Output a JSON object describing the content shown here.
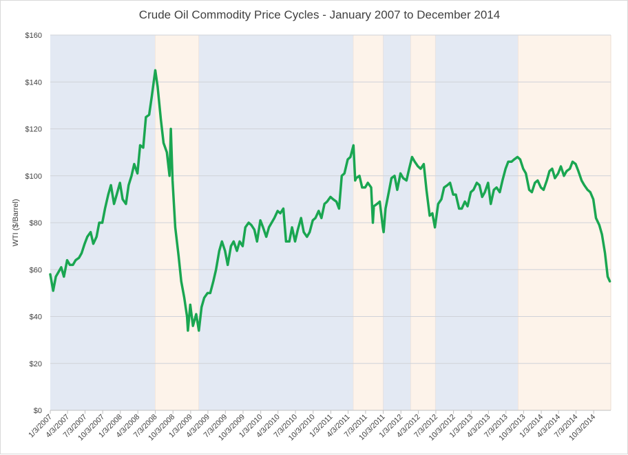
{
  "chart_data": {
    "type": "line",
    "title": "Crude Oil Commodity Price Cycles - January 2007 to December 2014",
    "xlabel": "",
    "ylabel": "WTI ($/Barrel)",
    "xlim": [
      "2007-01-03",
      "2014-12-31"
    ],
    "ylim": [
      0,
      160
    ],
    "y_ticks": [
      0,
      20,
      40,
      60,
      80,
      100,
      120,
      140,
      160
    ],
    "y_tick_labels": [
      "$0",
      "$20",
      "$40",
      "$60",
      "$80",
      "$100",
      "$120",
      "$140",
      "$160"
    ],
    "x_tick_labels": [
      "1/3/2007",
      "4/3/2007",
      "7/3/2007",
      "10/3/2007",
      "1/3/2008",
      "4/3/2008",
      "7/3/2008",
      "10/3/2008",
      "1/3/2009",
      "4/3/2009",
      "7/3/2009",
      "10/3/2009",
      "1/3/2010",
      "4/3/2010",
      "7/3/2010",
      "10/3/2010",
      "1/3/2011",
      "4/3/2011",
      "7/3/2011",
      "10/3/2011",
      "1/3/2012",
      "4/3/2012",
      "7/3/2012",
      "10/3/2012",
      "1/3/2013",
      "4/3/2013",
      "7/3/2013",
      "10/3/2013",
      "1/3/2014",
      "4/3/2014",
      "7/3/2014",
      "10/3/2014"
    ],
    "grid": true,
    "legend": "none",
    "line_color": "#1aa651",
    "shaded_periods": [
      {
        "start": "2007-01-03",
        "end": "2008-07-03",
        "color": "#e3e9f3"
      },
      {
        "start": "2008-07-03",
        "end": "2009-02-15",
        "color": "#fdf3ea"
      },
      {
        "start": "2009-02-15",
        "end": "2011-05-01",
        "color": "#e3e9f3"
      },
      {
        "start": "2011-05-01",
        "end": "2011-10-03",
        "color": "#fdf3ea"
      },
      {
        "start": "2011-10-03",
        "end": "2012-02-24",
        "color": "#e3e9f3"
      },
      {
        "start": "2012-02-24",
        "end": "2012-07-01",
        "color": "#fdf3ea"
      },
      {
        "start": "2012-07-01",
        "end": "2013-09-05",
        "color": "#e3e9f3"
      },
      {
        "start": "2013-09-05",
        "end": "2014-12-31",
        "color": "#fdf3ea"
      }
    ],
    "series": [
      {
        "points": [
          [
            "2007-01-03",
            58
          ],
          [
            "2007-01-18",
            51
          ],
          [
            "2007-02-01",
            57
          ],
          [
            "2007-02-15",
            59
          ],
          [
            "2007-03-01",
            61
          ],
          [
            "2007-03-15",
            57
          ],
          [
            "2007-04-01",
            64
          ],
          [
            "2007-04-15",
            62
          ],
          [
            "2007-05-01",
            62
          ],
          [
            "2007-05-15",
            64
          ],
          [
            "2007-06-01",
            65
          ],
          [
            "2007-06-15",
            67
          ],
          [
            "2007-07-01",
            71
          ],
          [
            "2007-07-15",
            74
          ],
          [
            "2007-08-01",
            76
          ],
          [
            "2007-08-15",
            71
          ],
          [
            "2007-09-01",
            74
          ],
          [
            "2007-09-15",
            80
          ],
          [
            "2007-10-01",
            80
          ],
          [
            "2007-10-15",
            86
          ],
          [
            "2007-11-01",
            92
          ],
          [
            "2007-11-15",
            96
          ],
          [
            "2007-12-01",
            88
          ],
          [
            "2007-12-15",
            92
          ],
          [
            "2008-01-01",
            97
          ],
          [
            "2008-01-15",
            90
          ],
          [
            "2008-02-01",
            88
          ],
          [
            "2008-02-15",
            96
          ],
          [
            "2008-03-01",
            100
          ],
          [
            "2008-03-15",
            105
          ],
          [
            "2008-04-01",
            101
          ],
          [
            "2008-04-15",
            113
          ],
          [
            "2008-05-01",
            112
          ],
          [
            "2008-05-15",
            125
          ],
          [
            "2008-06-01",
            126
          ],
          [
            "2008-06-15",
            134
          ],
          [
            "2008-07-03",
            145
          ],
          [
            "2008-07-15",
            138
          ],
          [
            "2008-08-01",
            124
          ],
          [
            "2008-08-15",
            114
          ],
          [
            "2008-09-01",
            110
          ],
          [
            "2008-09-15",
            100
          ],
          [
            "2008-09-22",
            120
          ],
          [
            "2008-10-01",
            98
          ],
          [
            "2008-10-15",
            78
          ],
          [
            "2008-11-01",
            66
          ],
          [
            "2008-11-15",
            55
          ],
          [
            "2008-12-01",
            48
          ],
          [
            "2008-12-15",
            40
          ],
          [
            "2008-12-20",
            34
          ],
          [
            "2009-01-01",
            45
          ],
          [
            "2009-01-15",
            36
          ],
          [
            "2009-02-01",
            41
          ],
          [
            "2009-02-15",
            34
          ],
          [
            "2009-03-01",
            44
          ],
          [
            "2009-03-15",
            48
          ],
          [
            "2009-04-01",
            50
          ],
          [
            "2009-04-15",
            50
          ],
          [
            "2009-05-01",
            55
          ],
          [
            "2009-05-15",
            60
          ],
          [
            "2009-06-01",
            68
          ],
          [
            "2009-06-15",
            72
          ],
          [
            "2009-07-01",
            68
          ],
          [
            "2009-07-15",
            62
          ],
          [
            "2009-08-01",
            70
          ],
          [
            "2009-08-15",
            72
          ],
          [
            "2009-09-01",
            68
          ],
          [
            "2009-09-15",
            72
          ],
          [
            "2009-10-01",
            70
          ],
          [
            "2009-10-15",
            78
          ],
          [
            "2009-11-01",
            80
          ],
          [
            "2009-11-15",
            79
          ],
          [
            "2009-12-01",
            77
          ],
          [
            "2009-12-15",
            72
          ],
          [
            "2010-01-01",
            81
          ],
          [
            "2010-01-15",
            78
          ],
          [
            "2010-02-01",
            74
          ],
          [
            "2010-02-15",
            78
          ],
          [
            "2010-03-01",
            80
          ],
          [
            "2010-03-15",
            82
          ],
          [
            "2010-04-01",
            85
          ],
          [
            "2010-04-15",
            84
          ],
          [
            "2010-05-01",
            86
          ],
          [
            "2010-05-15",
            72
          ],
          [
            "2010-06-01",
            72
          ],
          [
            "2010-06-15",
            78
          ],
          [
            "2010-07-01",
            72
          ],
          [
            "2010-07-15",
            77
          ],
          [
            "2010-08-01",
            82
          ],
          [
            "2010-08-15",
            76
          ],
          [
            "2010-09-01",
            74
          ],
          [
            "2010-09-15",
            76
          ],
          [
            "2010-10-01",
            81
          ],
          [
            "2010-10-15",
            82
          ],
          [
            "2010-11-01",
            85
          ],
          [
            "2010-11-15",
            82
          ],
          [
            "2010-12-01",
            88
          ],
          [
            "2010-12-15",
            89
          ],
          [
            "2011-01-01",
            91
          ],
          [
            "2011-01-15",
            90
          ],
          [
            "2011-02-01",
            89
          ],
          [
            "2011-02-15",
            86
          ],
          [
            "2011-03-01",
            100
          ],
          [
            "2011-03-15",
            101
          ],
          [
            "2011-04-01",
            107
          ],
          [
            "2011-04-15",
            108
          ],
          [
            "2011-05-01",
            113
          ],
          [
            "2011-05-10",
            98
          ],
          [
            "2011-05-15",
            99
          ],
          [
            "2011-06-01",
            100
          ],
          [
            "2011-06-15",
            95
          ],
          [
            "2011-07-01",
            95
          ],
          [
            "2011-07-15",
            97
          ],
          [
            "2011-08-01",
            95
          ],
          [
            "2011-08-10",
            80
          ],
          [
            "2011-08-15",
            87
          ],
          [
            "2011-09-01",
            88
          ],
          [
            "2011-09-15",
            89
          ],
          [
            "2011-10-01",
            78
          ],
          [
            "2011-10-05",
            76
          ],
          [
            "2011-10-15",
            86
          ],
          [
            "2011-11-01",
            93
          ],
          [
            "2011-11-15",
            99
          ],
          [
            "2011-12-01",
            100
          ],
          [
            "2011-12-15",
            94
          ],
          [
            "2012-01-01",
            101
          ],
          [
            "2012-01-15",
            99
          ],
          [
            "2012-02-01",
            98
          ],
          [
            "2012-02-15",
            103
          ],
          [
            "2012-03-01",
            108
          ],
          [
            "2012-03-15",
            106
          ],
          [
            "2012-04-01",
            104
          ],
          [
            "2012-04-15",
            103
          ],
          [
            "2012-05-01",
            105
          ],
          [
            "2012-05-15",
            94
          ],
          [
            "2012-06-01",
            83
          ],
          [
            "2012-06-15",
            84
          ],
          [
            "2012-06-28",
            78
          ],
          [
            "2012-07-15",
            88
          ],
          [
            "2012-08-01",
            90
          ],
          [
            "2012-08-15",
            95
          ],
          [
            "2012-09-01",
            96
          ],
          [
            "2012-09-15",
            97
          ],
          [
            "2012-10-01",
            92
          ],
          [
            "2012-10-15",
            92
          ],
          [
            "2012-11-01",
            86
          ],
          [
            "2012-11-15",
            86
          ],
          [
            "2012-12-01",
            89
          ],
          [
            "2012-12-15",
            87
          ],
          [
            "2013-01-01",
            93
          ],
          [
            "2013-01-15",
            94
          ],
          [
            "2013-02-01",
            97
          ],
          [
            "2013-02-15",
            96
          ],
          [
            "2013-03-01",
            91
          ],
          [
            "2013-03-15",
            93
          ],
          [
            "2013-04-01",
            97
          ],
          [
            "2013-04-15",
            88
          ],
          [
            "2013-05-01",
            94
          ],
          [
            "2013-05-15",
            95
          ],
          [
            "2013-06-01",
            93
          ],
          [
            "2013-06-15",
            98
          ],
          [
            "2013-07-01",
            103
          ],
          [
            "2013-07-15",
            106
          ],
          [
            "2013-08-01",
            106
          ],
          [
            "2013-08-15",
            107
          ],
          [
            "2013-09-01",
            108
          ],
          [
            "2013-09-15",
            107
          ],
          [
            "2013-10-01",
            103
          ],
          [
            "2013-10-15",
            101
          ],
          [
            "2013-11-01",
            94
          ],
          [
            "2013-11-15",
            93
          ],
          [
            "2013-12-01",
            97
          ],
          [
            "2013-12-15",
            98
          ],
          [
            "2014-01-01",
            95
          ],
          [
            "2014-01-15",
            94
          ],
          [
            "2014-02-01",
            98
          ],
          [
            "2014-02-15",
            102
          ],
          [
            "2014-03-01",
            103
          ],
          [
            "2014-03-15",
            99
          ],
          [
            "2014-04-01",
            101
          ],
          [
            "2014-04-15",
            104
          ],
          [
            "2014-05-01",
            100
          ],
          [
            "2014-05-15",
            102
          ],
          [
            "2014-06-01",
            103
          ],
          [
            "2014-06-15",
            106
          ],
          [
            "2014-07-01",
            105
          ],
          [
            "2014-07-15",
            102
          ],
          [
            "2014-08-01",
            98
          ],
          [
            "2014-08-15",
            96
          ],
          [
            "2014-09-01",
            94
          ],
          [
            "2014-09-15",
            93
          ],
          [
            "2014-10-01",
            90
          ],
          [
            "2014-10-15",
            82
          ],
          [
            "2014-11-01",
            79
          ],
          [
            "2014-11-15",
            75
          ],
          [
            "2014-12-01",
            67
          ],
          [
            "2014-12-15",
            57
          ],
          [
            "2014-12-26",
            55
          ]
        ]
      }
    ]
  }
}
